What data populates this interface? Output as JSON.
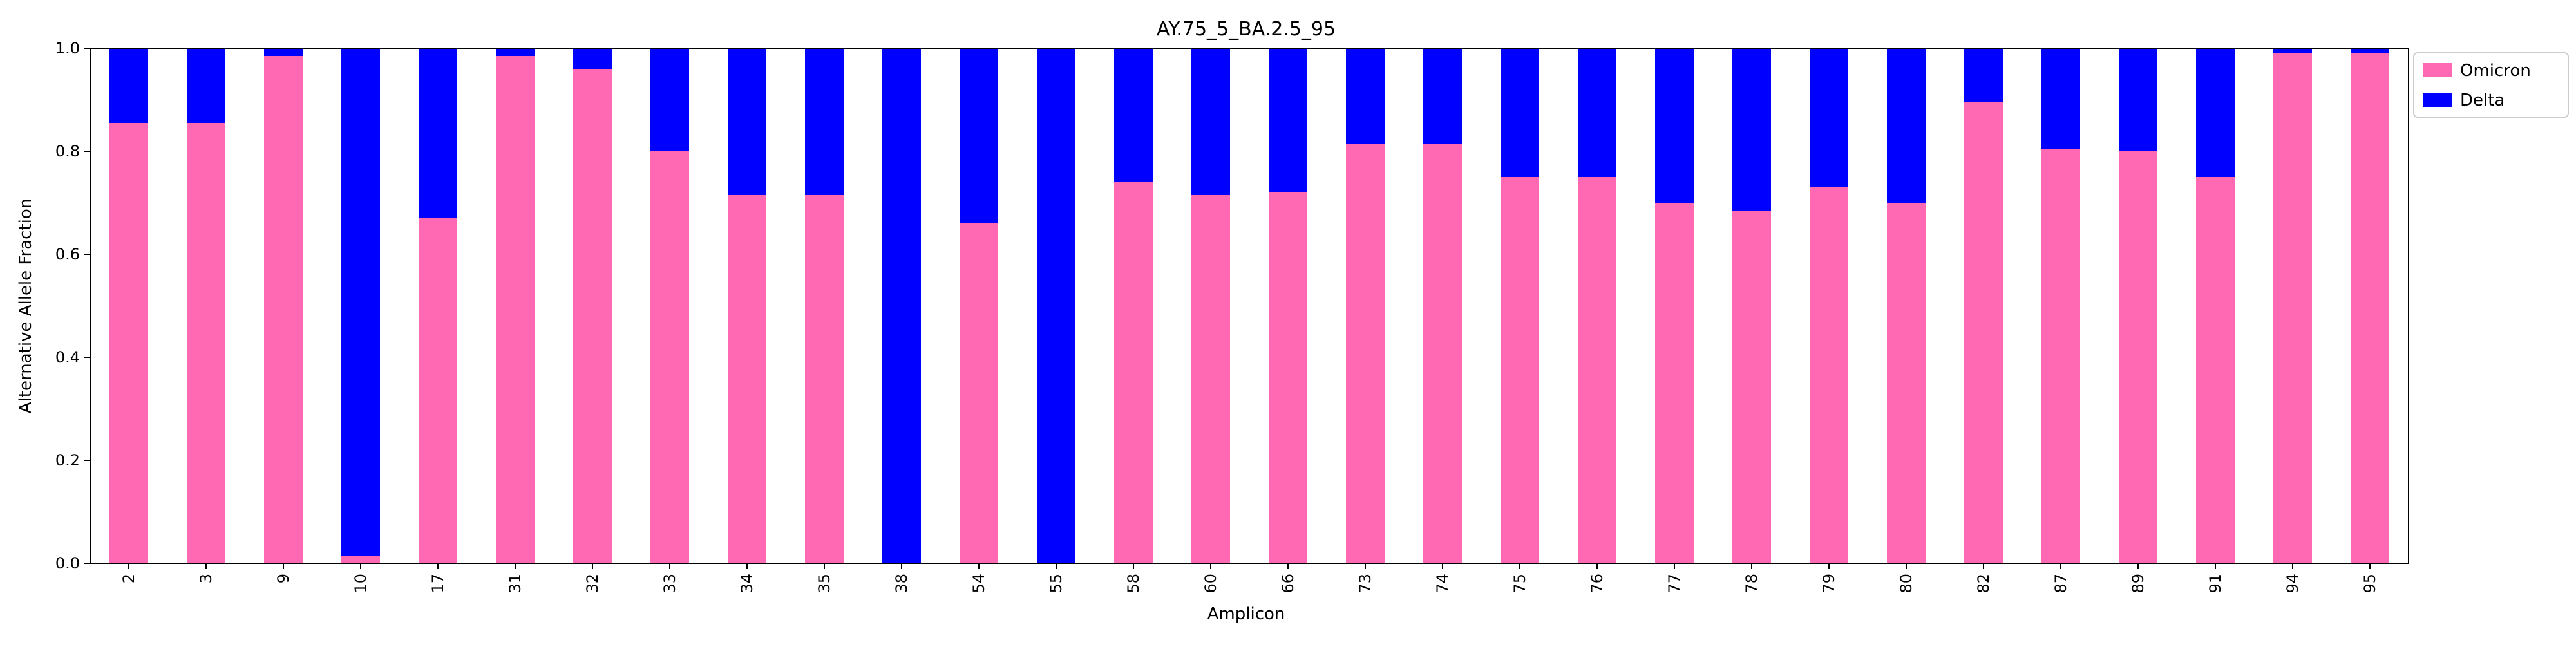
{
  "chart_data": {
    "type": "bar",
    "stacked": true,
    "title": "AY.75_5_BA.2.5_95",
    "xlabel": "Amplicon",
    "ylabel": "Alternative Allele Fraction",
    "ylim": [
      0,
      1.0
    ],
    "yticks": [
      "0.0",
      "0.2",
      "0.4",
      "0.6",
      "0.8",
      "1.0"
    ],
    "grid": false,
    "legend_position": "outside top-right",
    "categories": [
      "2",
      "3",
      "9",
      "10",
      "17",
      "31",
      "32",
      "33",
      "34",
      "35",
      "38",
      "54",
      "55",
      "58",
      "60",
      "66",
      "73",
      "74",
      "75",
      "76",
      "77",
      "78",
      "79",
      "80",
      "82",
      "87",
      "89",
      "91",
      "94",
      "95"
    ],
    "series": [
      {
        "name": "Omicron",
        "color": "#ff69b4",
        "values": [
          0.855,
          0.855,
          0.985,
          0.015,
          0.67,
          0.985,
          0.96,
          0.8,
          0.715,
          0.715,
          0.0,
          0.66,
          0.0,
          0.74,
          0.715,
          0.72,
          0.815,
          0.815,
          0.75,
          0.75,
          0.7,
          0.685,
          0.73,
          0.7,
          0.895,
          0.805,
          0.8,
          0.75,
          0.99,
          0.99
        ]
      },
      {
        "name": "Delta",
        "color": "#0000ff",
        "values": [
          0.145,
          0.145,
          0.015,
          0.985,
          0.33,
          0.015,
          0.04,
          0.2,
          0.285,
          0.285,
          1.0,
          0.34,
          1.0,
          0.26,
          0.285,
          0.28,
          0.185,
          0.185,
          0.25,
          0.25,
          0.3,
          0.315,
          0.27,
          0.3,
          0.105,
          0.195,
          0.2,
          0.25,
          0.01,
          0.01
        ]
      }
    ]
  }
}
